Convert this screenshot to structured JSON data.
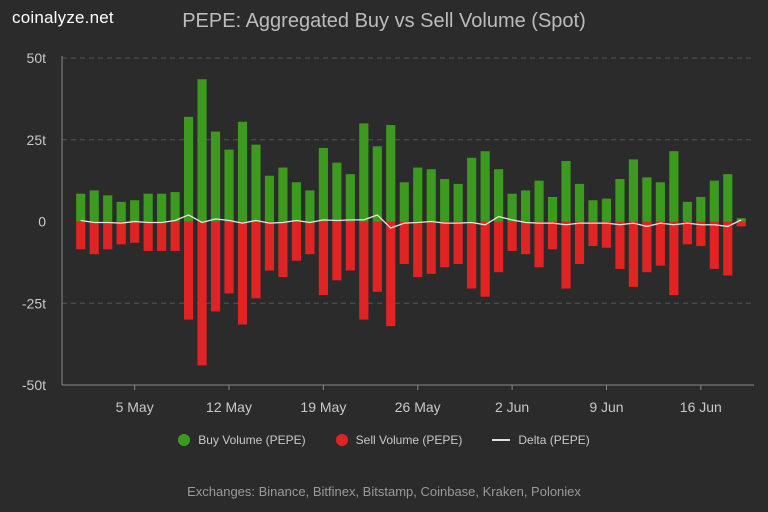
{
  "brand": "coinalyze.net",
  "footer": "Exchanges: Binance, Bitfinex, Bitstamp, Coinbase, Kraken, Poloniex",
  "colors": {
    "buy": "#3c9a1e",
    "sell": "#e02424",
    "delta": "#e6e6e6",
    "grid": "#555555",
    "background": "#2b2b2b"
  },
  "chart_data": {
    "type": "bar",
    "title": "PEPE: Aggregated Buy vs Sell Volume (Spot)",
    "xlabel": "",
    "ylabel": "",
    "ylim": [
      -50,
      50
    ],
    "y_ticks": [
      50,
      25,
      0,
      -25,
      -50
    ],
    "y_tick_labels": [
      "50t",
      "25t",
      "0",
      "-25t",
      "-50t"
    ],
    "x_tick_labels": [
      "5 May",
      "12 May",
      "19 May",
      "26 May",
      "2 Jun",
      "9 Jun",
      "16 Jun"
    ],
    "x_tick_positions": [
      5,
      12,
      19,
      26,
      33,
      40,
      47
    ],
    "x_start_day_of_may": 1,
    "categories_note": "daily bars, 1 May to 19 Jun",
    "grid": true,
    "legend_position": "bottom",
    "series": [
      {
        "name": "Buy Volume (PEPE)",
        "values": [
          8.5,
          9.5,
          8.0,
          6.0,
          6.5,
          8.5,
          8.5,
          9.0,
          32.0,
          43.5,
          27.5,
          22.0,
          30.5,
          23.5,
          14.0,
          16.5,
          12.0,
          9.5,
          22.5,
          18.0,
          14.5,
          30.0,
          23.0,
          29.5,
          12.0,
          16.5,
          16.0,
          13.0,
          11.5,
          19.5,
          21.5,
          16.0,
          8.5,
          9.5,
          12.5,
          7.5,
          18.5,
          11.5,
          6.5,
          7.0,
          13.0,
          19.0,
          13.5,
          12.0,
          21.5,
          6.0,
          7.5,
          12.5,
          14.5,
          1.0
        ]
      },
      {
        "name": "Sell Volume (PEPE)",
        "values": [
          -8.5,
          -10.0,
          -8.5,
          -7.0,
          -6.5,
          -9.0,
          -9.0,
          -9.0,
          -30.0,
          -44.0,
          -27.5,
          -22.0,
          -31.5,
          -23.5,
          -15.0,
          -17.0,
          -12.0,
          -10.0,
          -22.5,
          -18.0,
          -15.0,
          -30.0,
          -21.5,
          -32.0,
          -13.0,
          -17.0,
          -16.0,
          -14.0,
          -13.0,
          -20.5,
          -23.0,
          -15.5,
          -9.0,
          -10.0,
          -14.0,
          -8.5,
          -20.5,
          -13.0,
          -7.5,
          -8.0,
          -14.5,
          -20.0,
          -15.5,
          -13.5,
          -22.5,
          -7.0,
          -7.5,
          -14.5,
          -16.5,
          -1.5
        ]
      },
      {
        "name": "Delta (PEPE)",
        "values": [
          0.3,
          -0.3,
          -0.3,
          -0.5,
          0.0,
          -0.3,
          -0.3,
          0.3,
          2.0,
          -0.3,
          0.8,
          0.3,
          -0.5,
          0.3,
          -0.5,
          -0.3,
          0.3,
          -0.3,
          0.5,
          0.3,
          0.5,
          0.5,
          2.0,
          -2.0,
          -0.5,
          -0.3,
          0.0,
          -0.5,
          -0.5,
          -0.3,
          -1.0,
          1.5,
          0.5,
          -0.3,
          -0.5,
          -0.5,
          -1.0,
          -0.5,
          -0.5,
          -0.5,
          -1.0,
          -0.5,
          -1.5,
          -0.5,
          -1.0,
          -0.5,
          -1.0,
          -1.0,
          -1.5,
          0.5
        ]
      }
    ]
  }
}
